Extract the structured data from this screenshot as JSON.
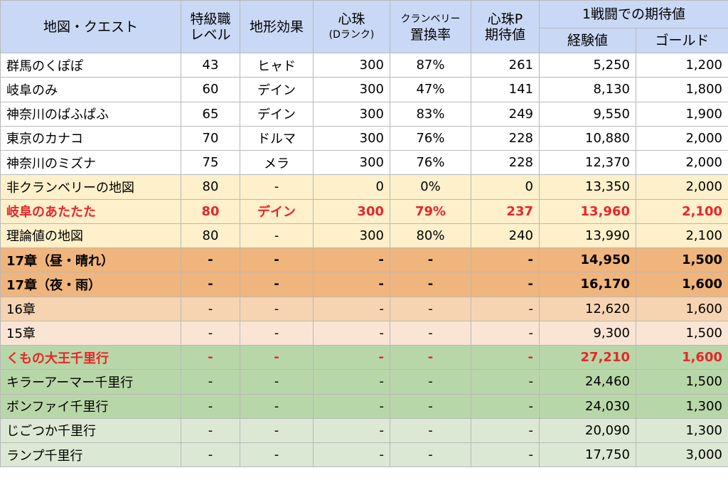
{
  "header": {
    "map_quest": "地図・クエスト",
    "level_line1": "特級職",
    "level_line2": "レベル",
    "terrain": "地形効果",
    "orb_line1": "心珠",
    "orb_line2": "(Dランク)",
    "cran_line1": "クランベリー",
    "cran_line2": "置換率",
    "orbp_line1": "心珠P",
    "orbp_line2": "期待値",
    "expected_group": "1戦闘での期待値",
    "exp": "経験値",
    "gold": "ゴールド"
  },
  "rows": [
    {
      "name": "群馬のくぽぽ",
      "level": "43",
      "terrain": "ヒャド",
      "orb": "300",
      "rate": "87%",
      "orbp": "261",
      "exp": "5,250",
      "gold": "1,200",
      "style": "normal",
      "bg": "#ffffff"
    },
    {
      "name": "岐阜のみ",
      "level": "60",
      "terrain": "デイン",
      "orb": "300",
      "rate": "47%",
      "orbp": "141",
      "exp": "8,130",
      "gold": "1,800",
      "style": "normal",
      "bg": "#ffffff"
    },
    {
      "name": "神奈川のぱふぱふ",
      "level": "65",
      "terrain": "デイン",
      "orb": "300",
      "rate": "83%",
      "orbp": "249",
      "exp": "9,550",
      "gold": "1,900",
      "style": "normal",
      "bg": "#ffffff"
    },
    {
      "name": "東京のカナコ",
      "level": "70",
      "terrain": "ドルマ",
      "orb": "300",
      "rate": "76%",
      "orbp": "228",
      "exp": "10,880",
      "gold": "2,000",
      "style": "normal",
      "bg": "#ffffff"
    },
    {
      "name": "神奈川のミズナ",
      "level": "75",
      "terrain": "メラ",
      "orb": "300",
      "rate": "76%",
      "orbp": "228",
      "exp": "12,370",
      "gold": "2,000",
      "style": "normal",
      "bg": "#ffffff"
    },
    {
      "name": "非クランベリーの地図",
      "level": "80",
      "terrain": "-",
      "orb": "0",
      "rate": "0%",
      "orbp": "0",
      "exp": "13,350",
      "gold": "2,000",
      "style": "normal",
      "bg": "#fdf0cb"
    },
    {
      "name": "岐阜のあたたた",
      "level": "80",
      "terrain": "デイン",
      "orb": "300",
      "rate": "79%",
      "orbp": "237",
      "exp": "13,960",
      "gold": "2,100",
      "style": "red",
      "bg": "#fdf0cb"
    },
    {
      "name": "理論値の地図",
      "level": "80",
      "terrain": "-",
      "orb": "300",
      "rate": "80%",
      "orbp": "240",
      "exp": "13,990",
      "gold": "2,100",
      "style": "normal",
      "bg": "#fdf0cb"
    },
    {
      "name": "17章（昼・晴れ）",
      "level": "-",
      "terrain": "-",
      "orb": "-",
      "rate": "-",
      "orbp": "-",
      "exp": "14,950",
      "gold": "1,500",
      "style": "bold",
      "bg": "#f0b57c"
    },
    {
      "name": "17章（夜・雨）",
      "level": "-",
      "terrain": "-",
      "orb": "-",
      "rate": "-",
      "orbp": "-",
      "exp": "16,170",
      "gold": "1,600",
      "style": "bold",
      "bg": "#f0b57c"
    },
    {
      "name": "16章",
      "level": "-",
      "terrain": "-",
      "orb": "-",
      "rate": "-",
      "orbp": "-",
      "exp": "12,620",
      "gold": "1,600",
      "style": "normal",
      "bg": "#f6d4b2"
    },
    {
      "name": "15章",
      "level": "-",
      "terrain": "-",
      "orb": "-",
      "rate": "-",
      "orbp": "-",
      "exp": "9,300",
      "gold": "1,500",
      "style": "normal",
      "bg": "#fae5d4"
    },
    {
      "name": "くもの大王千里行",
      "level": "-",
      "terrain": "-",
      "orb": "-",
      "rate": "-",
      "orbp": "-",
      "exp": "27,210",
      "gold": "1,600",
      "style": "red",
      "bg": "#b8d7a8"
    },
    {
      "name": "キラーアーマー千里行",
      "level": "-",
      "terrain": "-",
      "orb": "-",
      "rate": "-",
      "orbp": "-",
      "exp": "24,460",
      "gold": "1,500",
      "style": "normal",
      "bg": "#b8d7a8"
    },
    {
      "name": "ボンファイ千里行",
      "level": "-",
      "terrain": "-",
      "orb": "-",
      "rate": "-",
      "orbp": "-",
      "exp": "24,030",
      "gold": "1,300",
      "style": "normal",
      "bg": "#b8d7a8"
    },
    {
      "name": "じごつか千里行",
      "level": "-",
      "terrain": "-",
      "orb": "-",
      "rate": "-",
      "orbp": "-",
      "exp": "20,090",
      "gold": "1,300",
      "style": "normal",
      "bg": "#dbe8d3"
    },
    {
      "name": "ランプ千里行",
      "level": "-",
      "terrain": "-",
      "orb": "-",
      "rate": "-",
      "orbp": "-",
      "exp": "17,750",
      "gold": "3,000",
      "style": "normal",
      "bg": "#dbe8d3"
    }
  ],
  "colors": {
    "header_bg": "#c9d8f5",
    "highlight_red": "#e8252b",
    "border": "#b8b8b8"
  }
}
